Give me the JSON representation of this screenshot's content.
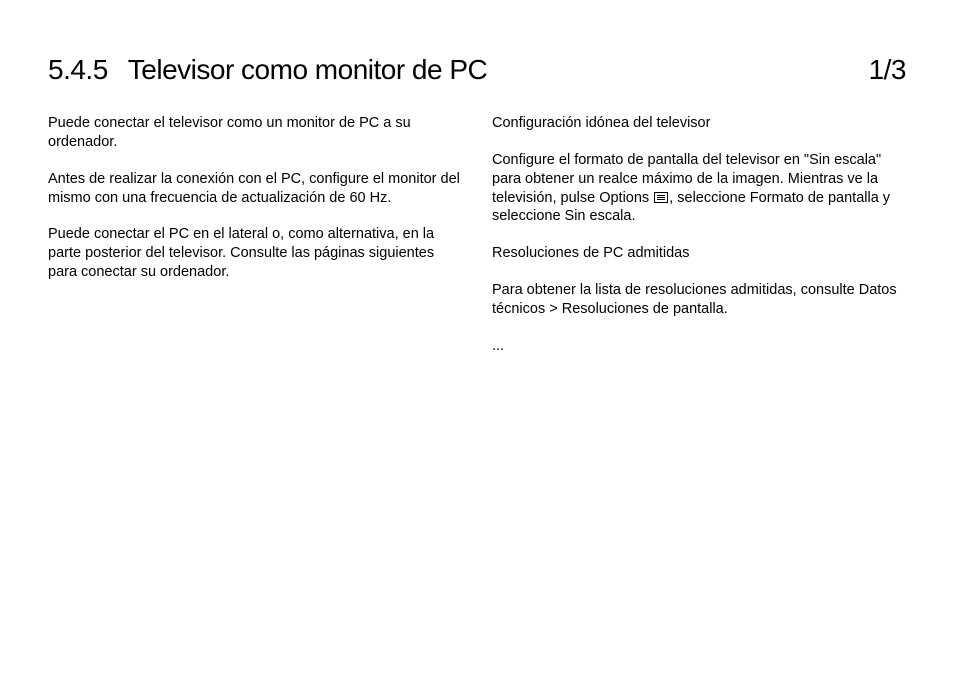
{
  "header": {
    "section_number": "5.4.5",
    "section_title": "Televisor como monitor de PC",
    "page_indicator": "1/3"
  },
  "left_column": {
    "p1": "Puede conectar el televisor como un monitor de PC a su ordenador.",
    "p2": "Antes de realizar la conexión con el PC, configure el monitor del mismo con una frecuencia de actualización de 60 Hz.",
    "p3": "Puede conectar el PC en el lateral o, como alternativa, en la parte posterior del televisor. Consulte las páginas siguientes para conectar su ordenador."
  },
  "right_column": {
    "h1": "Configuración idónea del televisor",
    "p1a": "Configure el formato de pantalla del televisor en \"Sin escala\" para obtener un realce máximo de la imagen. Mientras ve la televisión, pulse Options ",
    "p1b": ", seleccione Formato de pantalla y seleccione Sin escala.",
    "h2": "Resoluciones de PC admitidas",
    "p2": "Para obtener la lista de resoluciones admitidas, consulte Datos técnicos > Resoluciones de pantalla.",
    "ellipsis": "..."
  },
  "colors": {
    "background": "#ffffff",
    "text": "#000000"
  },
  "typography": {
    "title_fontsize": 28,
    "body_fontsize": 14.5,
    "font_family": "Arial"
  }
}
